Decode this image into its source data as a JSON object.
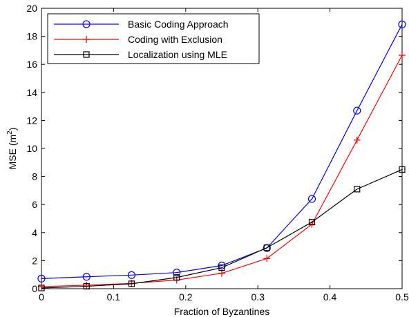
{
  "chart_data": {
    "type": "line",
    "title": "",
    "xlabel": "Fraction of Byzantines",
    "ylabel": "MSE (m",
    "ylabel_superscript": "2",
    "ylabel_suffix": ")",
    "xlim": [
      0,
      0.5
    ],
    "ylim": [
      0,
      20
    ],
    "xticks": [
      0,
      0.1,
      0.2,
      0.3,
      0.4,
      0.5
    ],
    "xtick_labels": [
      "0",
      "0.1",
      "0.2",
      "0.3",
      "0.4",
      "0.5"
    ],
    "yticks": [
      0,
      2,
      4,
      6,
      8,
      10,
      12,
      14,
      16,
      18,
      20
    ],
    "ytick_labels": [
      "0",
      "2",
      "4",
      "6",
      "8",
      "10",
      "12",
      "14",
      "16",
      "18",
      "20"
    ],
    "grid": false,
    "legend_position": "top-left",
    "x": [
      0,
      0.0625,
      0.125,
      0.1875,
      0.25,
      0.3125,
      0.375,
      0.4375,
      0.5
    ],
    "series": [
      {
        "name": "Basic Coding Approach",
        "color": "#0000ff",
        "marker": "circle",
        "values": [
          0.72,
          0.85,
          0.97,
          1.15,
          1.65,
          2.9,
          6.4,
          12.7,
          18.85
        ]
      },
      {
        "name": "Coding with Exclusion",
        "color": "#ff0000",
        "marker": "plus",
        "values": [
          0.15,
          0.25,
          0.38,
          0.62,
          1.1,
          2.15,
          4.6,
          10.6,
          16.65
        ]
      },
      {
        "name": "Localization using MLE",
        "color": "#000000",
        "marker": "square",
        "values": [
          0.05,
          0.17,
          0.35,
          0.8,
          1.5,
          2.92,
          4.75,
          7.1,
          8.5
        ]
      }
    ]
  }
}
